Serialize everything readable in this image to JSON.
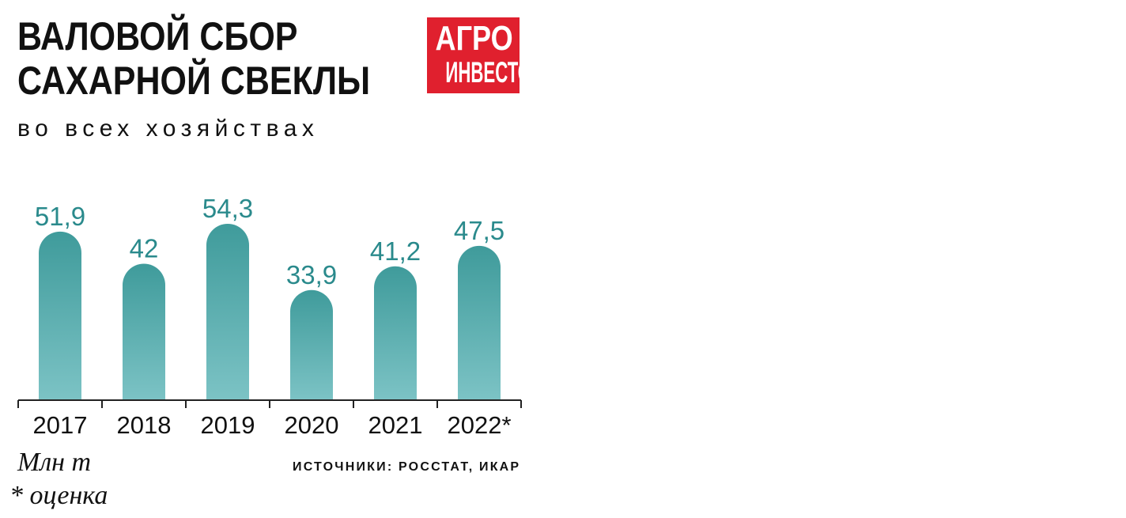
{
  "header": {
    "title_line1": "ВАЛОВОЙ СБОР",
    "title_line2": "САХАРНОЙ СВЕКЛЫ",
    "subtitle": "во всех хозяйствах"
  },
  "logo": {
    "line1": "АГРО",
    "line2": "ИНВЕСТОР"
  },
  "chart_data": {
    "type": "bar",
    "categories": [
      "2017",
      "2018",
      "2019",
      "2020",
      "2021",
      "2022*"
    ],
    "values": [
      51.9,
      42,
      54.3,
      33.9,
      41.2,
      47.5
    ],
    "value_labels": [
      "51,9",
      "42",
      "54,3",
      "33,9",
      "41,2",
      "47,5"
    ],
    "title": "ВАЛОВОЙ СБОР САХАРНОЙ СВЕКЛЫ",
    "subtitle": "во всех хозяйствах",
    "xlabel": "",
    "ylabel": "",
    "unit": "Млн т",
    "ylim": [
      0,
      56
    ],
    "grid": false,
    "bar_color_top": "#3f9b9b",
    "bar_color_bottom": "#7cc3c5",
    "label_color": "#2a8a8c"
  },
  "footer": {
    "unit": "Млн т",
    "note": "* оценка",
    "source": "ИСТОЧНИКИ: РОССТАТ, ИКАР"
  }
}
